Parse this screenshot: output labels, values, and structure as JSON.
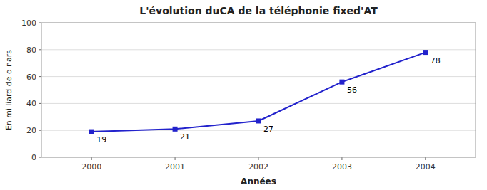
{
  "chart_data": {
    "type": "line",
    "title": "L'évolution duCA de la téléphonie fixed'AT",
    "xlabel": "Années",
    "ylabel": "En milliard de dinars",
    "x": [
      2000,
      2001,
      2002,
      2003,
      2004
    ],
    "values": [
      19,
      21,
      27,
      56,
      78
    ],
    "color": "#2222CC",
    "marker": "square",
    "line_style": "solid",
    "xlim": [
      1999.4,
      2004.6
    ],
    "xticks": [
      2000,
      2001,
      2002,
      2003,
      2004
    ],
    "ylim": [
      0,
      100
    ],
    "yticks": [
      0,
      20,
      40,
      60,
      80,
      100
    ],
    "grid": true,
    "data_labels": true
  }
}
